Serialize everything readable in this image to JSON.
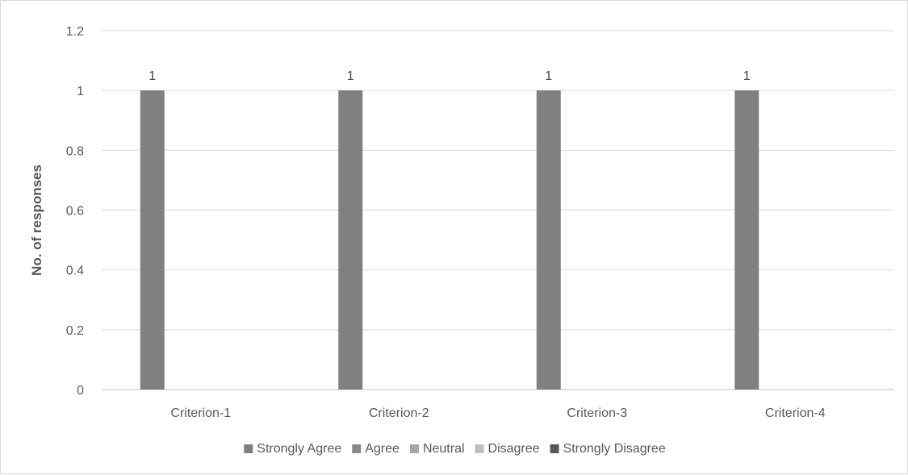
{
  "chart_data": {
    "type": "bar",
    "title": "",
    "xlabel": "",
    "ylabel": "No. of responses",
    "ylim": [
      0,
      1.2
    ],
    "yticks": [
      "0",
      "0.2",
      "0.4",
      "0.6",
      "0.8",
      "1",
      "1.2"
    ],
    "grid": true,
    "legend_position": "bottom",
    "categories": [
      "Criterion-1",
      "Criterion-2",
      "Criterion-3",
      "Criterion-4"
    ],
    "series": [
      {
        "name": "Strongly Agree",
        "color": "#808080",
        "values": [
          1,
          1,
          1,
          1
        ],
        "data_labels": [
          "1",
          "1",
          "1",
          "1"
        ]
      },
      {
        "name": "Agree",
        "color": "#8a8a8a",
        "values": [
          0,
          0,
          0,
          0
        ]
      },
      {
        "name": "Neutral",
        "color": "#a6a6a6",
        "values": [
          0,
          0,
          0,
          0
        ]
      },
      {
        "name": "Disagree",
        "color": "#bfbfbf",
        "values": [
          0,
          0,
          0,
          0
        ]
      },
      {
        "name": "Strongly Disagree",
        "color": "#595959",
        "values": [
          0,
          0,
          0,
          0
        ]
      }
    ]
  }
}
